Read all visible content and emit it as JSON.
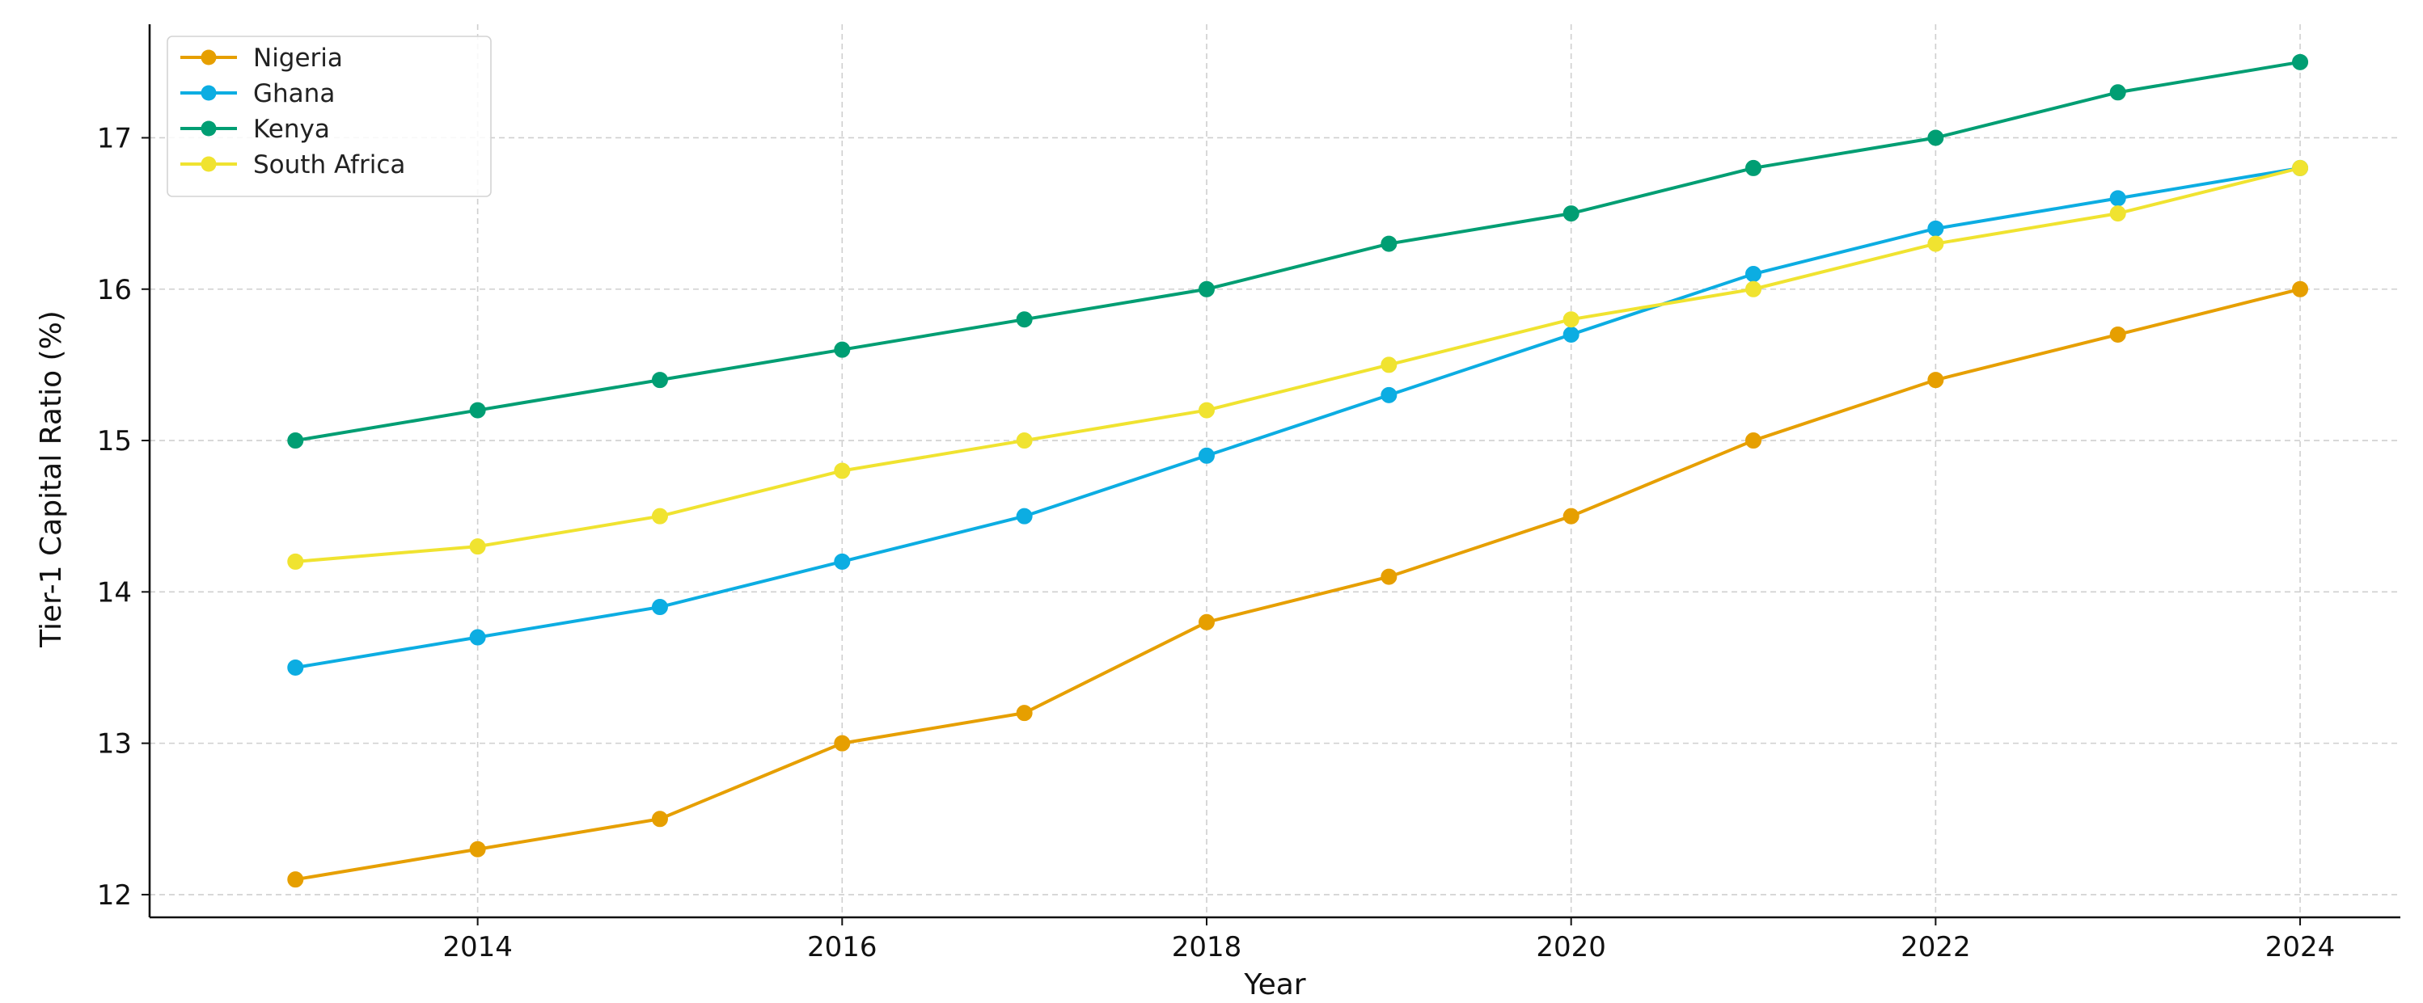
{
  "chart_data": {
    "type": "line",
    "title": "",
    "xlabel": "Year",
    "ylabel": "Tier-1 Capital Ratio (%)",
    "x": [
      2013,
      2014,
      2015,
      2016,
      2017,
      2018,
      2019,
      2020,
      2021,
      2022,
      2023,
      2024
    ],
    "xlim": [
      2012.2,
      2024.55
    ],
    "ylim": [
      11.85,
      17.75
    ],
    "xticks": [
      2014,
      2016,
      2018,
      2020,
      2022,
      2024
    ],
    "yticks": [
      12,
      13,
      14,
      15,
      16,
      17
    ],
    "grid": true,
    "legend_position": "top-left",
    "series": [
      {
        "name": "Nigeria",
        "color": "#E69F00",
        "values": [
          12.1,
          12.3,
          12.5,
          13.0,
          13.2,
          13.8,
          14.1,
          14.5,
          15.0,
          15.4,
          15.7,
          16.0
        ]
      },
      {
        "name": "Ghana",
        "color": "#0CADE2",
        "values": [
          13.5,
          13.7,
          13.9,
          14.2,
          14.5,
          14.9,
          15.3,
          15.7,
          16.1,
          16.4,
          16.6,
          16.8
        ]
      },
      {
        "name": "Kenya",
        "color": "#009E73",
        "values": [
          15.0,
          15.2,
          15.4,
          15.6,
          15.8,
          16.0,
          16.3,
          16.5,
          16.8,
          17.0,
          17.3,
          17.5
        ]
      },
      {
        "name": "South Africa",
        "color": "#F0E330",
        "values": [
          14.2,
          14.3,
          14.5,
          14.8,
          15.0,
          15.2,
          15.5,
          15.8,
          16.0,
          16.3,
          16.5,
          16.8
        ]
      }
    ]
  }
}
